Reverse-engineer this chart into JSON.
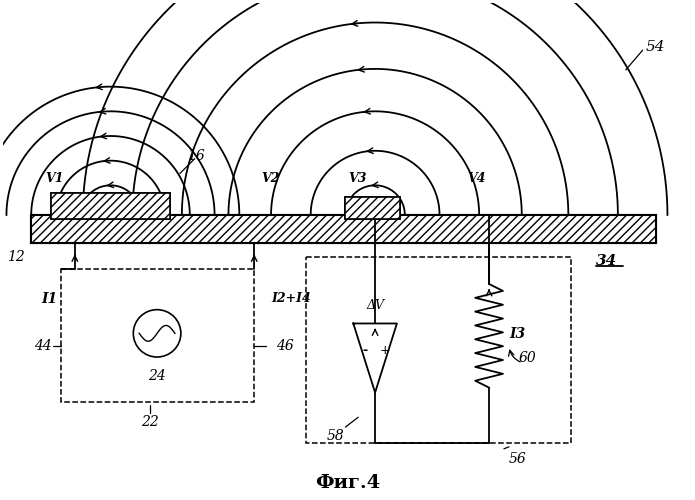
{
  "background": "#ffffff",
  "fig_label": "54",
  "arc_label": "16",
  "tool_label": "34",
  "tool_label_12": "12",
  "v_labels": [
    "V1",
    "V2",
    "V3",
    "V4"
  ],
  "box1_label": "22",
  "source_label": "24",
  "I1_label": "I1",
  "I2I4_label": "I2+I4",
  "left44": "44",
  "right46": "46",
  "box2_label": "56",
  "amplifier_label": "58",
  "deltaV_label": "ΔV",
  "resistor_label": "I3",
  "r60_label": "60",
  "fig_caption": "Фиг.4"
}
